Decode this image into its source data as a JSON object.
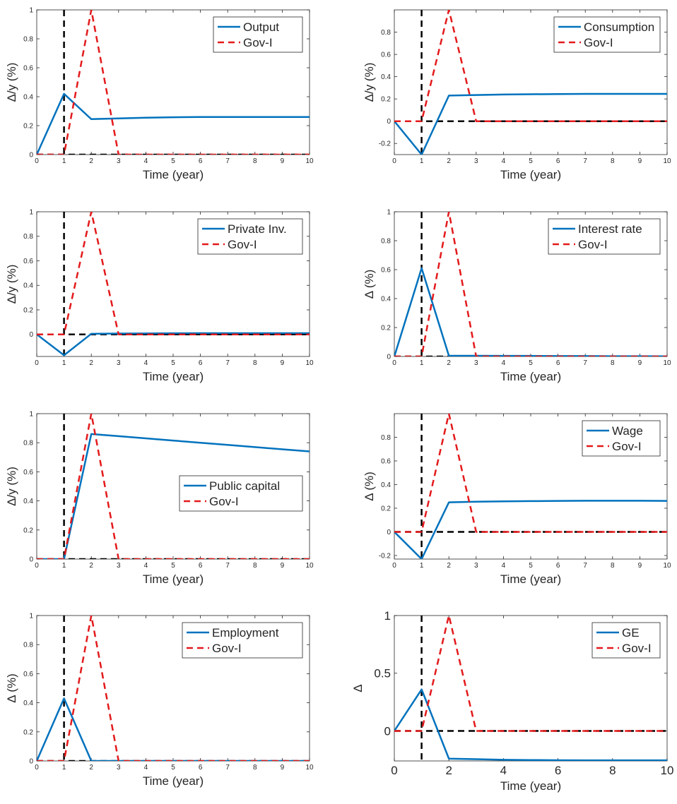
{
  "colors": {
    "blue": "#0072BD",
    "red": "#E31A1C",
    "black": "#000000",
    "axis": "#262626"
  },
  "chart_data": [
    {
      "type": "line",
      "xlabel": "Time (year)",
      "ylabel": "Δ/y (%)",
      "xlim": [
        0,
        10
      ],
      "ylim": [
        0,
        1
      ],
      "xticks": [
        0,
        1,
        2,
        3,
        4,
        5,
        6,
        7,
        8,
        9,
        10
      ],
      "yticks": [
        0,
        0.2,
        0.4,
        0.6,
        0.8,
        1
      ],
      "x": [
        0,
        1,
        2,
        3,
        4,
        5,
        6,
        7,
        8,
        9,
        10
      ],
      "series": [
        {
          "name": "Output",
          "style": "solid",
          "values": [
            0,
            0.42,
            0.245,
            0.25,
            0.255,
            0.258,
            0.26,
            0.26,
            0.26,
            0.26,
            0.26
          ]
        },
        {
          "name": "Gov-I",
          "style": "dashed",
          "values": [
            0,
            0,
            1,
            0,
            0,
            0,
            0,
            0,
            0,
            0,
            0
          ]
        }
      ],
      "legend": "top-right",
      "grid": false
    },
    {
      "type": "line",
      "xlabel": "Time (year)",
      "ylabel": "Δ/y (%)",
      "xlim": [
        0,
        10
      ],
      "ylim": [
        -0.3,
        1
      ],
      "xticks": [
        0,
        1,
        2,
        3,
        4,
        5,
        6,
        7,
        8,
        9,
        10
      ],
      "yticks": [
        -0.2,
        0,
        0.2,
        0.4,
        0.6,
        0.8
      ],
      "x": [
        0,
        1,
        2,
        3,
        4,
        5,
        6,
        7,
        8,
        9,
        10
      ],
      "series": [
        {
          "name": "Consumption",
          "style": "solid",
          "values": [
            0,
            -0.3,
            0.23,
            0.235,
            0.24,
            0.242,
            0.244,
            0.245,
            0.245,
            0.245,
            0.245
          ]
        },
        {
          "name": "Gov-I",
          "style": "dashed",
          "values": [
            0,
            0,
            1,
            0,
            0,
            0,
            0,
            0,
            0,
            0,
            0
          ]
        }
      ],
      "legend": "top-right",
      "grid": false
    },
    {
      "type": "line",
      "xlabel": "Time (year)",
      "ylabel": "Δ/y (%)",
      "xlim": [
        0,
        10
      ],
      "ylim": [
        -0.18,
        1
      ],
      "xticks": [
        0,
        1,
        2,
        3,
        4,
        5,
        6,
        7,
        8,
        9,
        10
      ],
      "yticks": [
        0,
        0.2,
        0.4,
        0.6,
        0.8,
        1
      ],
      "x": [
        0,
        1,
        2,
        3,
        4,
        5,
        6,
        7,
        8,
        9,
        10
      ],
      "series": [
        {
          "name": "Private Inv.",
          "style": "solid",
          "values": [
            0,
            -0.17,
            0.005,
            0.007,
            0.008,
            0.009,
            0.01,
            0.01,
            0.01,
            0.01,
            0.01
          ]
        },
        {
          "name": "Gov-I",
          "style": "dashed",
          "values": [
            0,
            0,
            1,
            0,
            0,
            0,
            0,
            0,
            0,
            0,
            0
          ]
        }
      ],
      "legend": "top-right",
      "grid": false
    },
    {
      "type": "line",
      "xlabel": "Time (year)",
      "ylabel": "Δ (%)",
      "xlim": [
        0,
        10
      ],
      "ylim": [
        0,
        1
      ],
      "xticks": [
        0,
        1,
        2,
        3,
        4,
        5,
        6,
        7,
        8,
        9,
        10
      ],
      "yticks": [
        0,
        0.2,
        0.4,
        0.6,
        0.8,
        1
      ],
      "x": [
        0,
        1,
        2,
        3,
        4,
        5,
        6,
        7,
        8,
        9,
        10
      ],
      "series": [
        {
          "name": "Interest rate",
          "style": "solid",
          "values": [
            0,
            0.61,
            0.005,
            0.005,
            0.004,
            0.004,
            0.003,
            0.003,
            0.002,
            0.002,
            0.001
          ]
        },
        {
          "name": "Gov-I",
          "style": "dashed",
          "values": [
            0,
            0,
            1,
            0,
            0,
            0,
            0,
            0,
            0,
            0,
            0
          ]
        }
      ],
      "legend": "top-right",
      "grid": false
    },
    {
      "type": "line",
      "xlabel": "Time (year)",
      "ylabel": "Δ/y (%)",
      "xlim": [
        0,
        10
      ],
      "ylim": [
        0,
        1
      ],
      "xticks": [
        0,
        1,
        2,
        3,
        4,
        5,
        6,
        7,
        8,
        9,
        10
      ],
      "yticks": [
        0,
        0.2,
        0.4,
        0.6,
        0.8,
        1
      ],
      "x": [
        0,
        1,
        2,
        3,
        4,
        5,
        6,
        7,
        8,
        9,
        10
      ],
      "series": [
        {
          "name": "Public capital",
          "style": "solid",
          "values": [
            0,
            0,
            0.86,
            0.845,
            0.83,
            0.815,
            0.8,
            0.785,
            0.77,
            0.755,
            0.74
          ]
        },
        {
          "name": "Gov-I",
          "style": "dashed",
          "values": [
            0,
            0,
            1,
            0,
            0,
            0,
            0,
            0,
            0,
            0,
            0
          ]
        }
      ],
      "legend": "center-right",
      "grid": false
    },
    {
      "type": "line",
      "xlabel": "Time (year)",
      "ylabel": "Δ (%)",
      "xlim": [
        0,
        10
      ],
      "ylim": [
        -0.23,
        1
      ],
      "xticks": [
        0,
        1,
        2,
        3,
        4,
        5,
        6,
        7,
        8,
        9,
        10
      ],
      "yticks": [
        -0.2,
        0,
        0.2,
        0.4,
        0.6,
        0.8
      ],
      "x": [
        0,
        1,
        2,
        3,
        4,
        5,
        6,
        7,
        8,
        9,
        10
      ],
      "series": [
        {
          "name": "Wage",
          "style": "solid",
          "values": [
            0,
            -0.23,
            0.25,
            0.255,
            0.258,
            0.26,
            0.262,
            0.263,
            0.263,
            0.263,
            0.262
          ]
        },
        {
          "name": "Gov-I",
          "style": "dashed",
          "values": [
            0,
            0,
            1,
            0,
            0,
            0,
            0,
            0,
            0,
            0,
            0
          ]
        }
      ],
      "legend": "top-right",
      "grid": false
    },
    {
      "type": "line",
      "xlabel": "Time (year)",
      "ylabel": "Δ (%)",
      "xlim": [
        0,
        10
      ],
      "ylim": [
        0,
        1
      ],
      "xticks": [
        0,
        1,
        2,
        3,
        4,
        5,
        6,
        7,
        8,
        9,
        10
      ],
      "yticks": [
        0,
        0.2,
        0.4,
        0.6,
        0.8,
        1
      ],
      "x": [
        0,
        1,
        2,
        3,
        4,
        5,
        6,
        7,
        8,
        9,
        10
      ],
      "series": [
        {
          "name": "Employment",
          "style": "solid",
          "values": [
            0,
            0.43,
            0,
            0,
            0,
            0,
            0,
            0,
            0,
            0,
            0
          ]
        },
        {
          "name": "Gov-I",
          "style": "dashed",
          "values": [
            0,
            0,
            1,
            0,
            0,
            0,
            0,
            0,
            0,
            0,
            0
          ]
        }
      ],
      "legend": "top-right",
      "grid": false
    },
    {
      "type": "line",
      "xlabel": "Time (year)",
      "ylabel": "Δ",
      "xlim": [
        0,
        10
      ],
      "ylim": [
        -0.26,
        1
      ],
      "xticks": [
        0,
        2,
        4,
        6,
        8,
        10
      ],
      "yticks": [
        0,
        0.5,
        1
      ],
      "x": [
        0,
        1,
        2,
        3,
        4,
        5,
        6,
        7,
        8,
        9,
        10
      ],
      "series": [
        {
          "name": "GE",
          "style": "solid",
          "values": [
            0,
            0.36,
            -0.24,
            -0.245,
            -0.25,
            -0.252,
            -0.254,
            -0.255,
            -0.255,
            -0.255,
            -0.255
          ]
        },
        {
          "name": "Gov-I",
          "style": "dashed",
          "values": [
            0,
            0,
            1,
            0,
            0,
            0,
            0,
            0,
            0,
            0,
            0
          ]
        }
      ],
      "legend": "top-right",
      "grid": false
    }
  ]
}
